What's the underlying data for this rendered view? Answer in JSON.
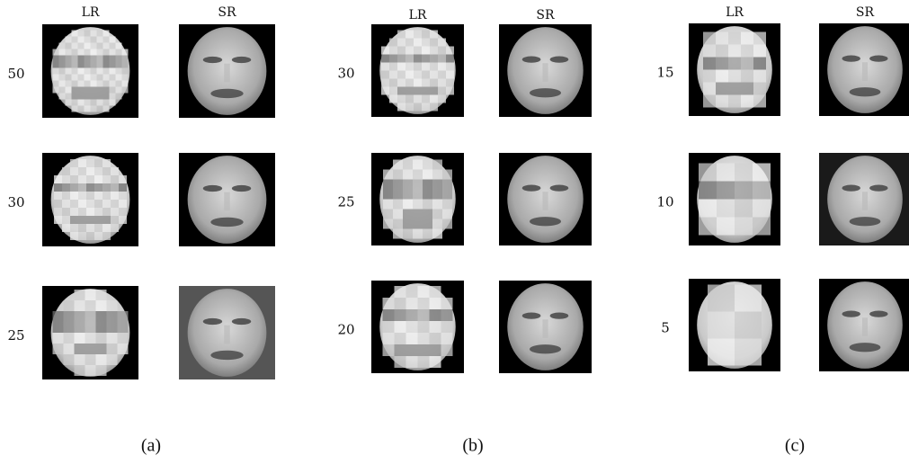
{
  "panels": [
    {
      "headers": [
        "LR",
        "SR"
      ],
      "rows": [
        "50",
        "30",
        "25"
      ],
      "caption": "(a)"
    },
    {
      "headers": [
        "LR",
        "SR"
      ],
      "rows": [
        "30",
        "25",
        "20"
      ],
      "caption": "(b)"
    },
    {
      "headers": [
        "LR",
        "SR"
      ],
      "rows": [
        "15",
        "10",
        "5"
      ],
      "caption": "(c)"
    }
  ]
}
